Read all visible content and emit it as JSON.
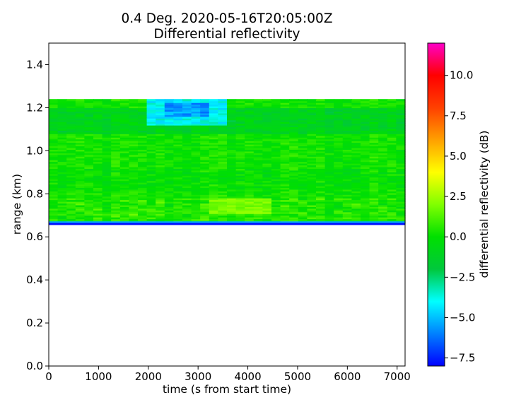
{
  "chart_data": {
    "type": "heatmap",
    "title": "0.4 Deg. 2020-05-16T20:05:00Z",
    "subtitle": "Differential reflectivity",
    "xlabel": "time (s from start time)",
    "ylabel": "range (km)",
    "xlim": [
      0,
      7160
    ],
    "ylim": [
      0.0,
      1.5
    ],
    "x_ticks": [
      "0",
      "1000",
      "2000",
      "3000",
      "4000",
      "5000",
      "6000",
      "7000"
    ],
    "y_ticks": [
      "0.0",
      "0.2",
      "0.4",
      "0.6",
      "0.8",
      "1.0",
      "1.2",
      "1.4"
    ],
    "colorbar": {
      "label": "differential reflectivity (dB)",
      "vmin": -8.0,
      "vmax": 12.0,
      "ticks": [
        "−7.5",
        "−5.0",
        "−2.5",
        "0.0",
        "2.5",
        "5.0",
        "7.5",
        "10.0"
      ],
      "colormap": "pyart_HomeyerRainbow-like",
      "colors": [
        "#0000ff",
        "#0080ff",
        "#00ffff",
        "#00c83c",
        "#00e000",
        "#80ff00",
        "#ffff00",
        "#ffa000",
        "#ff4000",
        "#ff0000",
        "#ff00c8"
      ]
    },
    "data_extent": {
      "range_km": [
        0.66,
        1.24
      ],
      "time_s": [
        0,
        7160
      ]
    },
    "regions": [
      {
        "description_value_db": 0.3,
        "range_km": [
          0.66,
          1.24
        ],
        "time_s": [
          0,
          7160
        ]
      },
      {
        "description_value_db": -7.8,
        "range_km": [
          0.655,
          0.665
        ],
        "time_s": [
          0,
          7160
        ]
      },
      {
        "description_value_db": -4.5,
        "range_km": [
          1.12,
          1.24
        ],
        "time_s": [
          2050,
          3550
        ]
      },
      {
        "description_value_db": -6.0,
        "range_km": [
          1.16,
          1.22
        ],
        "time_s": [
          2400,
          3300
        ]
      },
      {
        "description_value_db": 1.5,
        "range_km": [
          0.71,
          0.78
        ],
        "time_s": [
          3300,
          4400
        ]
      }
    ],
    "grid": false,
    "legend": "none"
  }
}
